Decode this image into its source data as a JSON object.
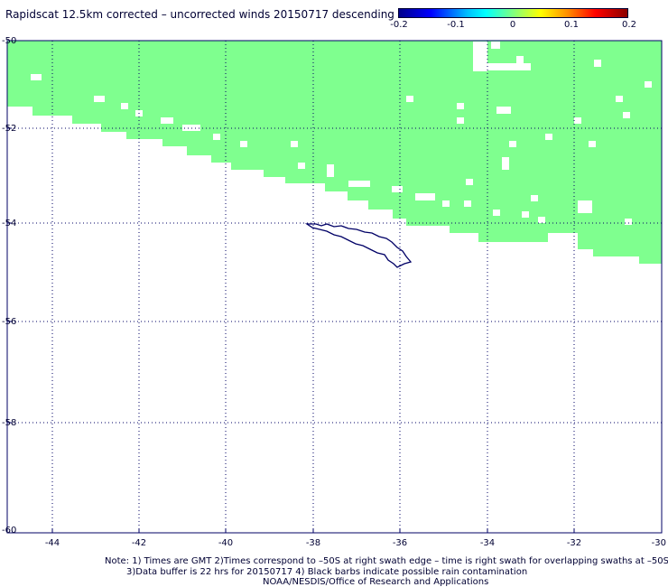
{
  "title": "Rapidscat 12.5km corrected – uncorrected winds 20150717 descending",
  "colorbar": {
    "labels": [
      "-0.2",
      "-0.1",
      "0",
      "0.1",
      "0.2"
    ],
    "colors": [
      "#00008b",
      "#0000ff",
      "#00ffff",
      "#7fff7f",
      "#ffff00",
      "#ff0000",
      "#8b0000"
    ]
  },
  "map": {
    "lon_range": [
      -45,
      -30
    ],
    "lat_range": [
      -60,
      -50
    ],
    "lon_ticks": [
      "-44",
      "-42",
      "-40",
      "-38",
      "-36",
      "-34",
      "-32",
      "-30"
    ],
    "lat_ticks": [
      "-50",
      "-52",
      "-54",
      "-56",
      "-58",
      "-60"
    ],
    "swath_color": "#7fff8f",
    "land_color": "#000066",
    "grid": "dotted"
  },
  "notes": {
    "line1": "Note: 1) Times are GMT 2)Times correspond to –50S at right swath edge – time is right swath for overlapping swaths at –50S",
    "line2": "3)Data buffer is 22 hrs for 20150717 4) Black barbs indicate possible rain contamination",
    "line3": "NOAA/NESDIS/Office of Research and Applications"
  }
}
